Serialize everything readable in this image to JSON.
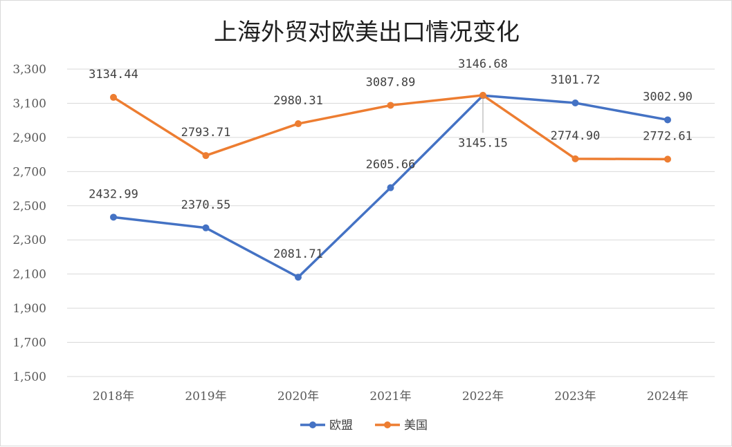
{
  "chart_data": {
    "type": "line",
    "title": "上海外贸对欧美出口情况变化",
    "categories": [
      "2018年",
      "2019年",
      "2020年",
      "2021年",
      "2022年",
      "2023年",
      "2024年"
    ],
    "ylim": [
      1500,
      3300
    ],
    "yticks": [
      1500,
      1700,
      1900,
      2100,
      2300,
      2500,
      2700,
      2900,
      3100,
      3300
    ],
    "ytick_labels": [
      "1,500",
      "1,700",
      "1,900",
      "2,100",
      "2,300",
      "2,500",
      "2,700",
      "2,900",
      "3,100",
      "3,300"
    ],
    "grid": true,
    "legend_position": "bottom",
    "series": [
      {
        "name": "欧盟",
        "color": "#4472c4",
        "values": [
          2432.99,
          2370.55,
          2081.71,
          2605.66,
          3145.15,
          3101.72,
          3002.9
        ],
        "labels": [
          "2432.99",
          "2370.55",
          "2081.71",
          "2605.66",
          "3145.15",
          "3101.72",
          "3002.90"
        ]
      },
      {
        "name": "美国",
        "color": "#ed7d31",
        "values": [
          3134.44,
          2793.71,
          2980.31,
          3087.89,
          3146.68,
          2774.9,
          2772.61
        ],
        "labels": [
          "3134.44",
          "2793.71",
          "2980.31",
          "3087.89",
          "3146.68",
          "2774.90",
          "2772.61"
        ]
      }
    ]
  }
}
